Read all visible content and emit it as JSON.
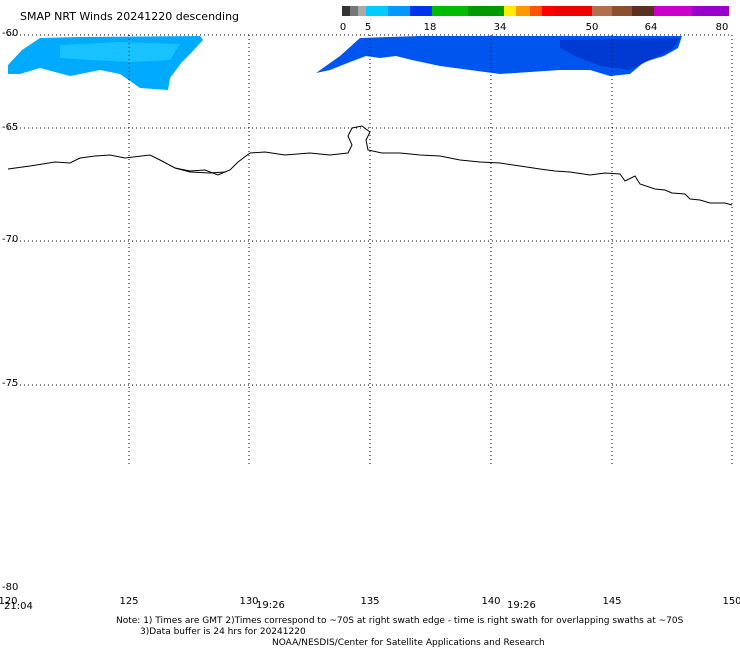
{
  "header": {
    "title": "SMAP NRT Winds  20241220 descending"
  },
  "colorbar": {
    "tick_labels": [
      "0",
      "5",
      "18",
      "34",
      "50",
      "64",
      "80"
    ],
    "tick_values": [
      0,
      5,
      18,
      34,
      50,
      64,
      80
    ]
  },
  "map": {
    "lon_labels": [
      "120",
      "125",
      "130",
      "135",
      "140",
      "145",
      "150"
    ],
    "lat_labels": [
      "-60",
      "-65",
      "-70",
      "-75",
      "-80"
    ],
    "lon_range": [
      120,
      150
    ],
    "lat_range": [
      -60,
      -80
    ],
    "time_labels": [
      "21:04",
      "19:26",
      "19:26"
    ],
    "coastline_color": "#000000",
    "swath_colors": [
      "#00aaff",
      "#0055ee"
    ]
  },
  "footer": {
    "note_line1": "Note: 1) Times are GMT 2)Times correspond to ~70S at right swath edge - time is right swath for overlapping swaths at ~70S",
    "note_line2": "3)Data buffer is 24 hrs for 20241220",
    "credit": "NOAA/NESDIS/Center for Satellite Applications and Research"
  }
}
